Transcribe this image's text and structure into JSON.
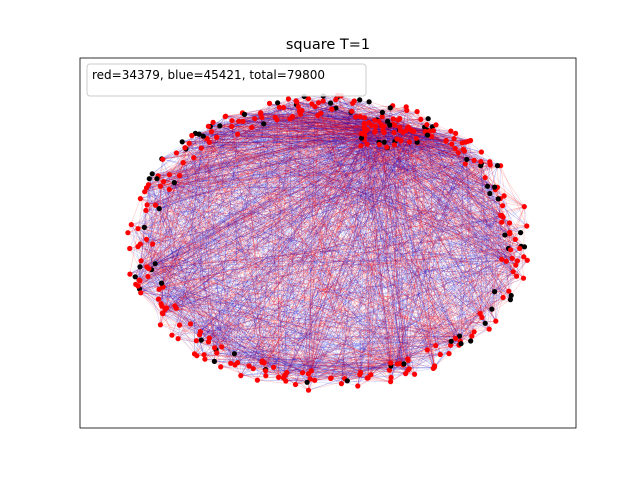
{
  "figure": {
    "title": "square T=1",
    "legend_text": "red=34379, blue=45421, total=79800"
  },
  "stats": {
    "red": 34379,
    "blue": 45421,
    "total": 79800
  },
  "colors": {
    "red": "#ff0000",
    "blue": "#0000cc",
    "black": "#000000",
    "axes_border": "#000000",
    "legend_border": "#cccccc"
  }
}
